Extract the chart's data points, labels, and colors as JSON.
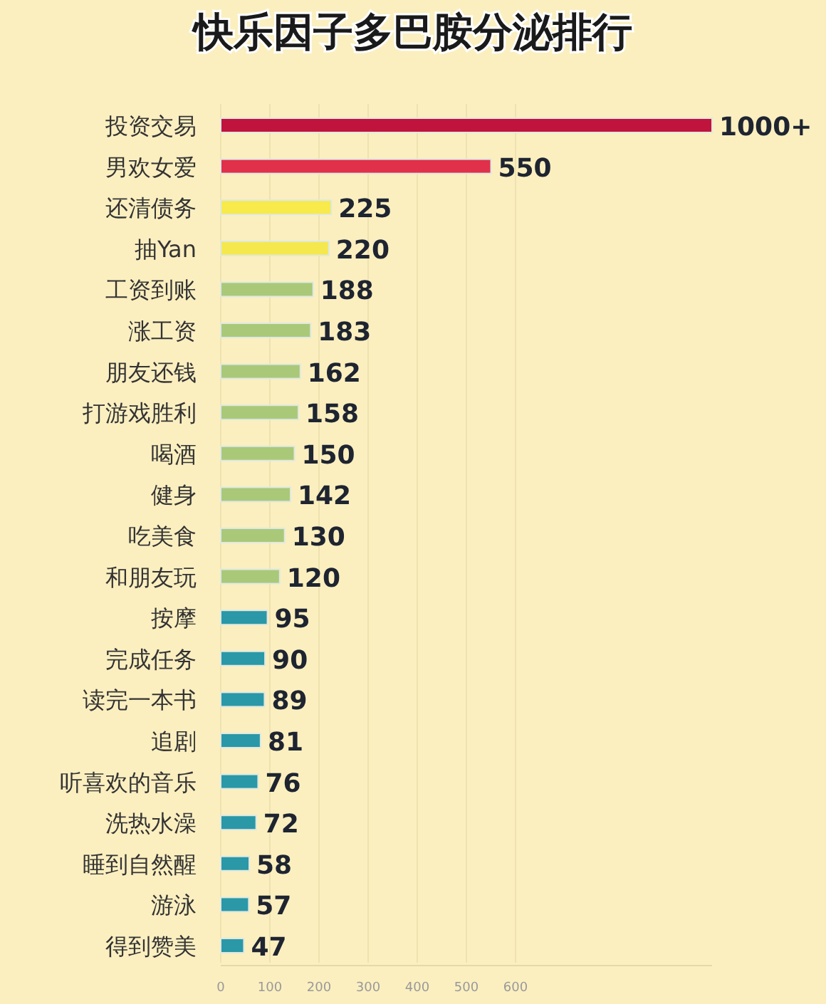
{
  "chart_data": {
    "type": "bar",
    "orientation": "horizontal",
    "title": "快乐因子多巴胺分泌排行",
    "categories": [
      "投资交易",
      "男欢女爱",
      "还清债务",
      "抽Yan",
      "工资到账",
      "涨工资",
      "朋友还钱",
      "打游戏胜利",
      "喝酒",
      "健身",
      "吃美食",
      "和朋友玩",
      "按摩",
      "完成任务",
      "读完一本书",
      "追剧",
      "听喜欢的音乐",
      "洗热水澡",
      "睡到自然醒",
      "游泳",
      "得到赞美"
    ],
    "values": [
      1000,
      550,
      225,
      220,
      188,
      183,
      162,
      158,
      150,
      142,
      130,
      120,
      95,
      90,
      89,
      81,
      76,
      72,
      58,
      57,
      47
    ],
    "value_labels": [
      "1000+",
      "550",
      "225",
      "220",
      "188",
      "183",
      "162",
      "158",
      "150",
      "142",
      "130",
      "120",
      "95",
      "90",
      "89",
      "81",
      "76",
      "72",
      "58",
      "57",
      "47"
    ],
    "colors": [
      "#c0143c",
      "#e0304a",
      "#f7ea4a",
      "#f5e84e",
      "#a9c979",
      "#a9c979",
      "#a9c979",
      "#a9c979",
      "#a9c979",
      "#a9c979",
      "#a9c979",
      "#a9c979",
      "#2a98a6",
      "#2a98a6",
      "#2a98a6",
      "#2a98a6",
      "#2a98a6",
      "#2a98a6",
      "#2a98a6",
      "#2a98a6",
      "#2a98a6"
    ],
    "xlim": [
      0,
      1000
    ],
    "xticks": [
      0,
      100,
      200,
      300,
      400,
      500,
      600
    ],
    "grid": "x"
  }
}
